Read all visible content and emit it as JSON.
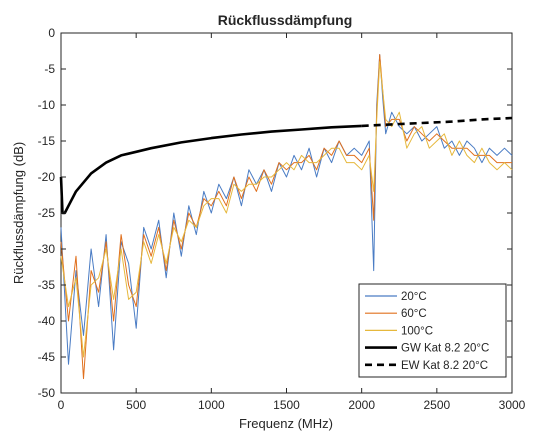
{
  "chart_data": {
    "type": "line",
    "title": "Rückflussdämpfung",
    "xlabel": "Frequenz (MHz)",
    "ylabel": "Rückflussdämpfung (dB)",
    "xlim": [
      0,
      3000
    ],
    "ylim": [
      -50,
      0
    ],
    "xticks": [
      0,
      500,
      1000,
      1500,
      2000,
      2500,
      3000
    ],
    "yticks": [
      0,
      -5,
      -10,
      -15,
      -20,
      -25,
      -30,
      -35,
      -40,
      -45,
      -50
    ],
    "grid": false,
    "legend_position": "bottom-right",
    "colors": {
      "20C": "#4a7cc4",
      "60C": "#e0701e",
      "100C": "#e6b83c",
      "limit": "#000000"
    },
    "series": [
      {
        "name": "20°C",
        "style": "solid-thin",
        "color": "#4a7cc4",
        "x": [
          0,
          50,
          100,
          150,
          200,
          250,
          300,
          350,
          400,
          450,
          500,
          550,
          600,
          650,
          700,
          750,
          800,
          850,
          900,
          950,
          1000,
          1050,
          1100,
          1150,
          1200,
          1250,
          1300,
          1350,
          1400,
          1450,
          1500,
          1550,
          1600,
          1650,
          1700,
          1750,
          1800,
          1850,
          1900,
          1950,
          2000,
          2050,
          2080,
          2100,
          2120,
          2140,
          2160,
          2200,
          2250,
          2300,
          2350,
          2400,
          2450,
          2500,
          2550,
          2600,
          2650,
          2700,
          2750,
          2800,
          2850,
          2900,
          2950,
          3000
        ],
        "y": [
          -27,
          -46,
          -33,
          -42,
          -30,
          -38,
          -28,
          -44,
          -29,
          -32,
          -41,
          -27,
          -30,
          -26,
          -34,
          -25,
          -31,
          -24,
          -28,
          -22,
          -25,
          -21,
          -23,
          -20,
          -24,
          -19,
          -21,
          -19,
          -22,
          -18,
          -20,
          -17,
          -19,
          -16,
          -20,
          -16,
          -18,
          -15,
          -17,
          -16,
          -17,
          -15,
          -33,
          -10,
          -3,
          -9,
          -14,
          -11,
          -13,
          -14,
          -13,
          -15,
          -14,
          -13,
          -16,
          -15,
          -17,
          -15,
          -16,
          -18,
          -16,
          -17,
          -16,
          -17
        ]
      },
      {
        "name": "60°C",
        "style": "solid-thin",
        "color": "#e0701e",
        "x": [
          0,
          50,
          100,
          150,
          200,
          250,
          300,
          350,
          400,
          450,
          500,
          550,
          600,
          650,
          700,
          750,
          800,
          850,
          900,
          950,
          1000,
          1050,
          1100,
          1150,
          1200,
          1250,
          1300,
          1350,
          1400,
          1450,
          1500,
          1550,
          1600,
          1650,
          1700,
          1750,
          1800,
          1850,
          1900,
          1950,
          2000,
          2050,
          2080,
          2100,
          2120,
          2140,
          2160,
          2200,
          2250,
          2300,
          2350,
          2400,
          2450,
          2500,
          2550,
          2600,
          2650,
          2700,
          2750,
          2800,
          2850,
          2900,
          2950,
          3000
        ],
        "y": [
          -29,
          -40,
          -31,
          -48,
          -33,
          -36,
          -29,
          -40,
          -28,
          -35,
          -38,
          -28,
          -31,
          -27,
          -33,
          -26,
          -30,
          -25,
          -27,
          -23,
          -24,
          -22,
          -24,
          -20,
          -23,
          -20,
          -22,
          -19,
          -21,
          -18,
          -19,
          -18,
          -18,
          -17,
          -19,
          -16,
          -17,
          -15,
          -17,
          -17,
          -18,
          -16,
          -26,
          -11,
          -3,
          -8,
          -13,
          -12,
          -12,
          -15,
          -13,
          -14,
          -15,
          -14,
          -15,
          -16,
          -16,
          -16,
          -17,
          -17,
          -17,
          -18,
          -18,
          -18
        ]
      },
      {
        "name": "100°C",
        "style": "solid-thin",
        "color": "#e6b83c",
        "x": [
          0,
          50,
          100,
          150,
          200,
          250,
          300,
          350,
          400,
          450,
          500,
          550,
          600,
          650,
          700,
          750,
          800,
          850,
          900,
          950,
          1000,
          1050,
          1100,
          1150,
          1200,
          1250,
          1300,
          1350,
          1400,
          1450,
          1500,
          1550,
          1600,
          1650,
          1700,
          1750,
          1800,
          1850,
          1900,
          1950,
          2000,
          2050,
          2080,
          2100,
          2120,
          2140,
          2160,
          2200,
          2250,
          2300,
          2350,
          2400,
          2450,
          2500,
          2550,
          2600,
          2650,
          2700,
          2750,
          2800,
          2850,
          2900,
          2950,
          3000
        ],
        "y": [
          -31,
          -38,
          -34,
          -45,
          -35,
          -34,
          -30,
          -37,
          -30,
          -37,
          -36,
          -29,
          -32,
          -28,
          -32,
          -27,
          -29,
          -26,
          -27,
          -24,
          -23,
          -23,
          -25,
          -21,
          -22,
          -21,
          -21,
          -20,
          -20,
          -19,
          -18,
          -19,
          -17,
          -18,
          -18,
          -17,
          -16,
          -16,
          -18,
          -18,
          -19,
          -17,
          -22,
          -12,
          -4,
          -8,
          -12,
          -13,
          -11,
          -16,
          -14,
          -13,
          -16,
          -15,
          -14,
          -17,
          -15,
          -17,
          -18,
          -16,
          -18,
          -19,
          -18,
          -19
        ]
      },
      {
        "name": "GW Kat 8.2 20°C",
        "style": "solid-thick",
        "color": "#000000",
        "x": [
          0,
          10,
          25,
          50,
          100,
          200,
          300,
          400,
          500,
          600,
          800,
          1000,
          1200,
          1400,
          1600,
          1800,
          2000
        ],
        "y": [
          -20,
          -25,
          -25,
          -24,
          -22,
          -19.5,
          -18,
          -17,
          -16.5,
          -16,
          -15.2,
          -14.6,
          -14.1,
          -13.7,
          -13.4,
          -13.1,
          -12.9
        ]
      },
      {
        "name": "EW Kat 8.2 20°C",
        "style": "dashed-thick",
        "color": "#000000",
        "x": [
          2000,
          2200,
          2400,
          2600,
          2800,
          3000
        ],
        "y": [
          -12.9,
          -12.7,
          -12.5,
          -12.3,
          -12.0,
          -11.8
        ]
      }
    ]
  }
}
